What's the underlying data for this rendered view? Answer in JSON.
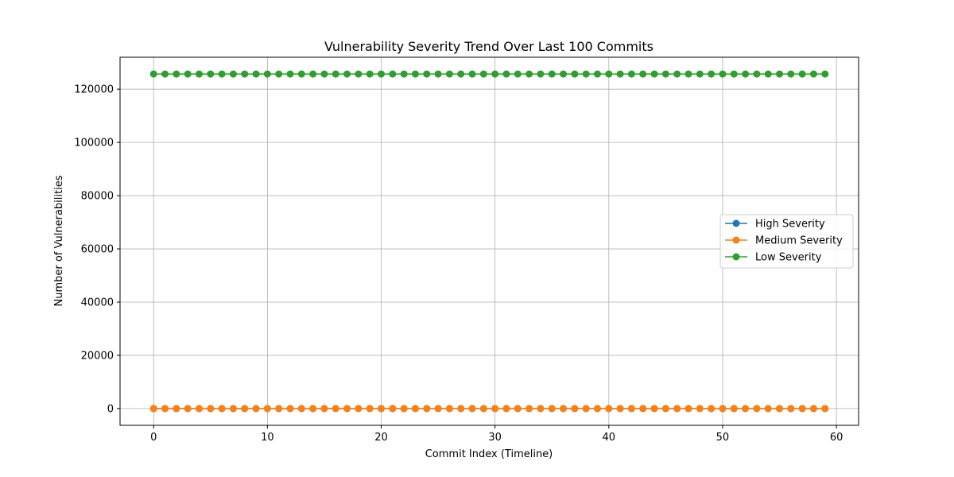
{
  "chart_data": {
    "type": "line",
    "title": "Vulnerability Severity Trend Over Last 100 Commits",
    "xlabel": "Commit Index (Timeline)",
    "ylabel": "Number of Vulnerabilities",
    "xlim": [
      -2.95,
      61.95
    ],
    "ylim": [
      -6300,
      132000
    ],
    "x_ticks": [
      0,
      10,
      20,
      30,
      40,
      50,
      60
    ],
    "x_tick_labels": [
      "0",
      "10",
      "20",
      "30",
      "40",
      "50",
      "60"
    ],
    "y_ticks": [
      0,
      20000,
      40000,
      60000,
      80000,
      100000,
      120000
    ],
    "y_tick_labels": [
      "0",
      "20000",
      "40000",
      "60000",
      "80000",
      "100000",
      "120000"
    ],
    "grid": true,
    "legend_position": "right",
    "x": [
      0,
      1,
      2,
      3,
      4,
      5,
      6,
      7,
      8,
      9,
      10,
      11,
      12,
      13,
      14,
      15,
      16,
      17,
      18,
      19,
      20,
      21,
      22,
      23,
      24,
      25,
      26,
      27,
      28,
      29,
      30,
      31,
      32,
      33,
      34,
      35,
      36,
      37,
      38,
      39,
      40,
      41,
      42,
      43,
      44,
      45,
      46,
      47,
      48,
      49,
      50,
      51,
      52,
      53,
      54,
      55,
      56,
      57,
      58,
      59
    ],
    "series": [
      {
        "name": "High Severity",
        "color": "#1f77b4",
        "values": [
          0,
          0,
          0,
          0,
          0,
          0,
          0,
          0,
          0,
          0,
          0,
          0,
          0,
          0,
          0,
          0,
          0,
          0,
          0,
          0,
          0,
          0,
          0,
          0,
          0,
          0,
          0,
          0,
          0,
          0,
          0,
          0,
          0,
          0,
          0,
          0,
          0,
          0,
          0,
          0,
          0,
          0,
          0,
          0,
          0,
          0,
          0,
          0,
          0,
          0,
          0,
          0,
          0,
          0,
          0,
          0,
          0,
          0,
          0,
          0
        ]
      },
      {
        "name": "Medium Severity",
        "color": "#ff7f0e",
        "values": [
          0,
          0,
          0,
          0,
          0,
          0,
          0,
          0,
          0,
          0,
          0,
          0,
          0,
          0,
          0,
          0,
          0,
          0,
          0,
          0,
          0,
          0,
          0,
          0,
          0,
          0,
          0,
          0,
          0,
          0,
          0,
          0,
          0,
          0,
          0,
          0,
          0,
          0,
          0,
          0,
          0,
          0,
          0,
          0,
          0,
          0,
          0,
          0,
          0,
          0,
          0,
          0,
          0,
          0,
          0,
          0,
          0,
          0,
          0,
          0
        ]
      },
      {
        "name": "Low Severity",
        "color": "#2ca02c",
        "values": [
          125700,
          125700,
          125700,
          125700,
          125700,
          125700,
          125700,
          125700,
          125700,
          125700,
          125700,
          125700,
          125700,
          125700,
          125700,
          125700,
          125700,
          125700,
          125700,
          125700,
          125700,
          125700,
          125700,
          125700,
          125700,
          125700,
          125700,
          125700,
          125700,
          125700,
          125700,
          125700,
          125700,
          125700,
          125700,
          125700,
          125700,
          125700,
          125700,
          125700,
          125700,
          125700,
          125700,
          125700,
          125700,
          125700,
          125700,
          125700,
          125700,
          125700,
          125700,
          125700,
          125700,
          125700,
          125700,
          125700,
          125700,
          125700,
          125700,
          125700
        ]
      }
    ]
  }
}
